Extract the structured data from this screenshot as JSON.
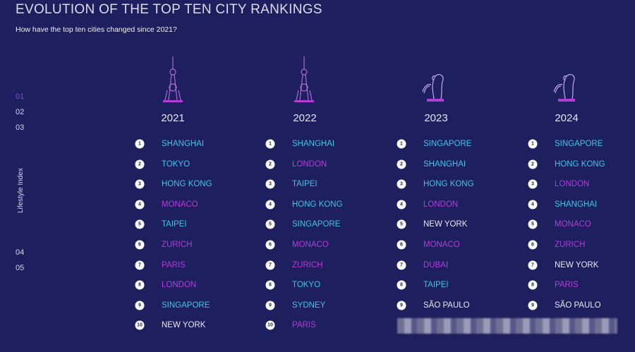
{
  "header": {
    "title": "EVOLUTION OF THE TOP TEN CITY RANKINGS",
    "subtitle": "How have the top ten cities changed since 2021?"
  },
  "side_nav": {
    "items": [
      {
        "label": "01",
        "active": true
      },
      {
        "label": "02",
        "active": false
      },
      {
        "label": "03",
        "active": false
      },
      {
        "label": "Lifestyle Index",
        "active": false
      },
      {
        "label": "04",
        "active": false
      },
      {
        "label": "05",
        "active": false
      }
    ]
  },
  "columns": [
    {
      "year": "2021",
      "rankings": [
        {
          "rank": 1,
          "city": "SHANGHAI",
          "color": "#3fc4ea"
        },
        {
          "rank": 2,
          "city": "TOKYO",
          "color": "#3fc4ea"
        },
        {
          "rank": 3,
          "city": "HONG KONG",
          "color": "#3fc4ea"
        },
        {
          "rank": 4,
          "city": "MONACO",
          "color": "#b53bd9"
        },
        {
          "rank": 5,
          "city": "TAIPEI",
          "color": "#3fc4ea"
        },
        {
          "rank": 6,
          "city": "ZURICH",
          "color": "#b53bd9"
        },
        {
          "rank": 7,
          "city": "PARIS",
          "color": "#b53bd9"
        },
        {
          "rank": 8,
          "city": "LONDON",
          "color": "#b53bd9"
        },
        {
          "rank": 9,
          "city": "SINGAPORE",
          "color": "#3fc4ea"
        },
        {
          "rank": 10,
          "city": "NEW YORK",
          "color": "#e8e8f0"
        }
      ]
    },
    {
      "year": "2022",
      "rankings": [
        {
          "rank": 1,
          "city": "SHANGHAI",
          "color": "#3fc4ea"
        },
        {
          "rank": 2,
          "city": "LONDON",
          "color": "#b53bd9"
        },
        {
          "rank": 3,
          "city": "TAIPEI",
          "color": "#3fc4ea"
        },
        {
          "rank": 4,
          "city": "HONG KONG",
          "color": "#3fc4ea"
        },
        {
          "rank": 5,
          "city": "SINGAPORE",
          "color": "#3fc4ea"
        },
        {
          "rank": 6,
          "city": "MONACO",
          "color": "#b53bd9"
        },
        {
          "rank": 7,
          "city": "ZURICH",
          "color": "#b53bd9"
        },
        {
          "rank": 8,
          "city": "TOKYO",
          "color": "#3fc4ea"
        },
        {
          "rank": 9,
          "city": "SYDNEY",
          "color": "#3fc4ea"
        },
        {
          "rank": 10,
          "city": "PARIS",
          "color": "#b53bd9"
        }
      ]
    },
    {
      "year": "2023",
      "rankings": [
        {
          "rank": 1,
          "city": "SINGAPORE",
          "color": "#3fc4ea"
        },
        {
          "rank": 2,
          "city": "SHANGHAI",
          "color": "#3fc4ea"
        },
        {
          "rank": 3,
          "city": "HONG KONG",
          "color": "#3fc4ea"
        },
        {
          "rank": 4,
          "city": "LONDON",
          "color": "#b53bd9"
        },
        {
          "rank": 5,
          "city": "NEW YORK",
          "color": "#e8e8f0"
        },
        {
          "rank": 6,
          "city": "MONACO",
          "color": "#b53bd9"
        },
        {
          "rank": 7,
          "city": "DUBAI",
          "color": "#b53bd9"
        },
        {
          "rank": 8,
          "city": "TAIPEI",
          "color": "#3fc4ea"
        },
        {
          "rank": 9,
          "city": "SÃO PAULO",
          "color": "#e8e8f0"
        }
      ]
    },
    {
      "year": "2024",
      "rankings": [
        {
          "rank": 1,
          "city": "SINGAPORE",
          "color": "#3fc4ea"
        },
        {
          "rank": 2,
          "city": "HONG KONG",
          "color": "#3fc4ea"
        },
        {
          "rank": 3,
          "city": "LONDON",
          "color": "#b53bd9"
        },
        {
          "rank": 4,
          "city": "SHANGHAI",
          "color": "#3fc4ea"
        },
        {
          "rank": 5,
          "city": "MONACO",
          "color": "#b53bd9"
        },
        {
          "rank": 6,
          "city": "ZURICH",
          "color": "#b53bd9"
        },
        {
          "rank": 7,
          "city": "NEW YORK",
          "color": "#e8e8f0"
        },
        {
          "rank": 8,
          "city": "PARIS",
          "color": "#b53bd9"
        },
        {
          "rank": 9,
          "city": "SÃO PAULO",
          "color": "#e8e8f0"
        }
      ]
    }
  ]
}
